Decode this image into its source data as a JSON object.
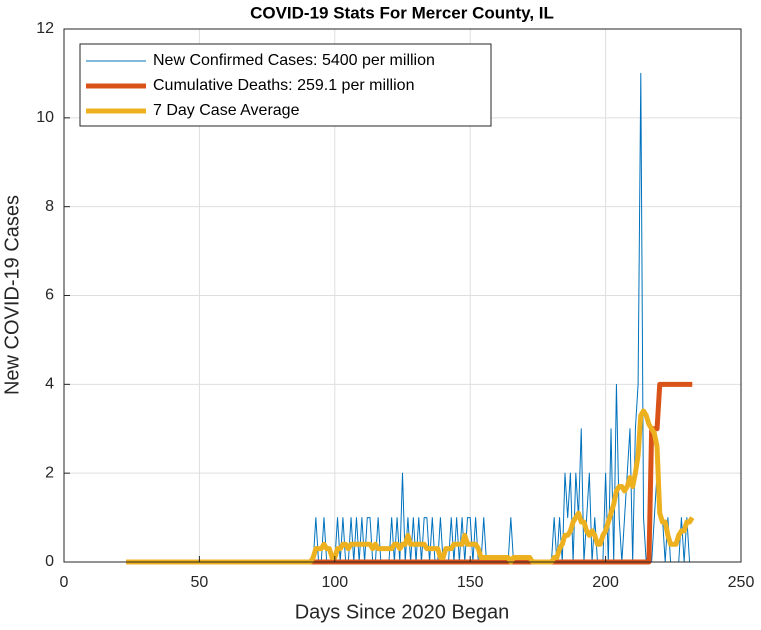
{
  "chart_data": {
    "type": "line",
    "title": "COVID-19 Stats For Mercer County, IL",
    "xlabel": "Days Since 2020 Began",
    "ylabel": "New COVID-19 Cases",
    "xlim": [
      0,
      250
    ],
    "xticks": [
      0,
      50,
      100,
      150,
      200,
      250
    ],
    "ylim": [
      0,
      12
    ],
    "yticks": [
      0,
      2,
      4,
      6,
      8,
      10,
      12
    ],
    "grid": true,
    "legend": "upper-left",
    "x": [
      23,
      24,
      25,
      26,
      27,
      28,
      29,
      30,
      31,
      32,
      33,
      34,
      35,
      36,
      37,
      38,
      39,
      40,
      41,
      42,
      43,
      44,
      45,
      46,
      47,
      48,
      49,
      50,
      51,
      52,
      53,
      54,
      55,
      56,
      57,
      58,
      59,
      60,
      61,
      62,
      63,
      64,
      65,
      66,
      67,
      68,
      69,
      70,
      71,
      72,
      73,
      74,
      75,
      76,
      77,
      78,
      79,
      80,
      81,
      82,
      83,
      84,
      85,
      86,
      87,
      88,
      89,
      90,
      91,
      92,
      93,
      94,
      95,
      96,
      97,
      98,
      99,
      100,
      101,
      102,
      103,
      104,
      105,
      106,
      107,
      108,
      109,
      110,
      111,
      112,
      113,
      114,
      115,
      116,
      117,
      118,
      119,
      120,
      121,
      122,
      123,
      124,
      125,
      126,
      127,
      128,
      129,
      130,
      131,
      132,
      133,
      134,
      135,
      136,
      137,
      138,
      139,
      140,
      141,
      142,
      143,
      144,
      145,
      146,
      147,
      148,
      149,
      150,
      151,
      152,
      153,
      154,
      155,
      156,
      157,
      158,
      159,
      160,
      161,
      162,
      163,
      164,
      165,
      166,
      167,
      168,
      169,
      170,
      171,
      172,
      173,
      174,
      175,
      176,
      177,
      178,
      179,
      180,
      181,
      182,
      183,
      184,
      185,
      186,
      187,
      188,
      189,
      190,
      191,
      192,
      193,
      194,
      195,
      196,
      197,
      198,
      199,
      200,
      201,
      202,
      203,
      204,
      205,
      206,
      207,
      208,
      209,
      210,
      211,
      212,
      213,
      214,
      215,
      216,
      217,
      218,
      219,
      220,
      221,
      222,
      223,
      224,
      225,
      226,
      227,
      228,
      229,
      230,
      231,
      232
    ],
    "series": [
      {
        "name": "New Confirmed Cases: 5400 per million",
        "color": "#0072BD",
        "width": 1,
        "values": [
          0,
          0,
          0,
          0,
          0,
          0,
          0,
          0,
          0,
          0,
          0,
          0,
          0,
          0,
          0,
          0,
          0,
          0,
          0,
          0,
          0,
          0,
          0,
          0,
          0,
          0,
          0,
          0,
          0,
          0,
          0,
          0,
          0,
          0,
          0,
          0,
          0,
          0,
          0,
          0,
          0,
          0,
          0,
          0,
          0,
          0,
          0,
          0,
          0,
          0,
          0,
          0,
          0,
          0,
          0,
          0,
          0,
          0,
          0,
          0,
          0,
          0,
          0,
          0,
          0,
          0,
          0,
          0,
          0,
          0,
          1,
          0,
          0,
          1,
          0,
          0,
          0,
          0,
          1,
          0,
          1,
          0,
          0,
          1,
          0,
          1,
          0,
          1,
          0,
          1,
          1,
          0,
          0,
          1,
          0,
          0,
          0,
          0,
          1,
          0,
          1,
          0,
          2,
          0,
          1,
          0,
          1,
          0,
          1,
          0,
          1,
          1,
          0,
          1,
          0,
          0,
          1,
          0,
          0,
          0,
          1,
          0,
          1,
          0,
          1,
          0,
          1,
          1,
          0,
          1,
          0,
          0,
          1,
          0,
          0,
          0,
          0,
          0,
          0,
          0,
          0,
          0,
          1,
          0,
          0,
          0,
          0,
          0,
          0,
          0,
          0,
          0,
          0,
          0,
          0,
          0,
          0,
          0,
          1,
          0,
          1,
          0,
          2,
          1,
          2,
          0,
          2,
          1,
          3,
          0,
          1,
          2,
          0,
          1,
          0,
          0,
          0,
          2,
          0,
          3,
          0,
          4,
          1,
          0,
          1,
          2,
          3,
          0,
          3,
          4,
          11,
          1,
          0,
          0,
          0,
          1,
          2,
          1,
          1,
          0,
          1,
          0,
          0,
          0,
          0,
          1,
          0,
          1,
          0,
          0
        ]
      },
      {
        "name": "Cumulative Deaths: 259.1 per million",
        "color": "#D95319",
        "width": 5,
        "values": [
          0,
          0,
          0,
          0,
          0,
          0,
          0,
          0,
          0,
          0,
          0,
          0,
          0,
          0,
          0,
          0,
          0,
          0,
          0,
          0,
          0,
          0,
          0,
          0,
          0,
          0,
          0,
          0,
          0,
          0,
          0,
          0,
          0,
          0,
          0,
          0,
          0,
          0,
          0,
          0,
          0,
          0,
          0,
          0,
          0,
          0,
          0,
          0,
          0,
          0,
          0,
          0,
          0,
          0,
          0,
          0,
          0,
          0,
          0,
          0,
          0,
          0,
          0,
          0,
          0,
          0,
          0,
          0,
          0,
          0,
          0,
          0,
          0,
          0,
          0,
          0,
          0,
          0,
          0,
          0,
          0,
          0,
          0,
          0,
          0,
          0,
          0,
          0,
          0,
          0,
          0,
          0,
          0,
          0,
          0,
          0,
          0,
          0,
          0,
          0,
          0,
          0,
          0,
          0,
          0,
          0,
          0,
          0,
          0,
          0,
          0,
          0,
          0,
          0,
          0,
          0,
          0,
          0,
          0,
          0,
          0,
          0,
          0,
          0,
          0,
          0,
          0,
          0,
          0,
          0,
          0,
          0,
          0,
          0,
          0,
          0,
          0,
          0,
          0,
          0,
          0,
          0,
          0,
          0,
          0,
          0,
          0,
          0,
          0,
          0,
          0,
          0,
          0,
          0,
          0,
          0,
          0,
          0,
          0,
          0,
          0,
          0,
          0,
          0,
          0,
          0,
          0,
          0,
          0,
          0,
          0,
          0,
          0,
          0,
          0,
          0,
          0,
          0,
          0,
          0,
          0,
          0,
          0,
          0,
          0,
          0,
          0,
          0,
          0,
          0,
          0,
          0,
          0,
          0,
          3,
          3,
          3,
          4,
          4,
          4,
          4,
          4,
          4,
          4,
          4,
          4,
          4,
          4,
          4,
          4
        ]
      },
      {
        "name": "7 Day Case Average",
        "color": "#EDB120",
        "width": 5,
        "values": [
          0,
          0,
          0,
          0,
          0,
          0,
          0,
          0,
          0,
          0,
          0,
          0,
          0,
          0,
          0,
          0,
          0,
          0,
          0,
          0,
          0,
          0,
          0,
          0,
          0,
          0,
          0,
          0,
          0,
          0,
          0,
          0,
          0,
          0,
          0,
          0,
          0,
          0,
          0,
          0,
          0,
          0,
          0,
          0,
          0,
          0,
          0,
          0,
          0,
          0,
          0,
          0,
          0,
          0,
          0,
          0,
          0,
          0,
          0,
          0,
          0,
          0,
          0,
          0,
          0,
          0,
          0,
          0,
          0,
          0.1,
          0.3,
          0.3,
          0.3,
          0.4,
          0.3,
          0.3,
          0.1,
          0.1,
          0.3,
          0.3,
          0.4,
          0.4,
          0.3,
          0.4,
          0.4,
          0.4,
          0.4,
          0.4,
          0.4,
          0.4,
          0.4,
          0.3,
          0.4,
          0.3,
          0.3,
          0.3,
          0.3,
          0.3,
          0.3,
          0.4,
          0.4,
          0.3,
          0.4,
          0.4,
          0.6,
          0.4,
          0.4,
          0.4,
          0.4,
          0.4,
          0.4,
          0.3,
          0.3,
          0.3,
          0.3,
          0.3,
          0.1,
          0.1,
          0.3,
          0.3,
          0.3,
          0.4,
          0.4,
          0.4,
          0.4,
          0.6,
          0.4,
          0.4,
          0.4,
          0.4,
          0.3,
          0.1,
          0.1,
          0.1,
          0.1,
          0.1,
          0.1,
          0.1,
          0.1,
          0.1,
          0.1,
          0.1,
          0,
          0.1,
          0.1,
          0.1,
          0.1,
          0.1,
          0.1,
          0.1,
          0,
          0,
          0,
          0,
          0,
          0,
          0,
          0,
          0.1,
          0.1,
          0.3,
          0.4,
          0.6,
          0.6,
          0.7,
          0.9,
          1.0,
          1.1,
          0.9,
          0.9,
          0.7,
          0.6,
          0.7,
          0.6,
          0.4,
          0.4,
          0.6,
          0.7,
          0.9,
          1.1,
          1.3,
          1.6,
          1.7,
          1.7,
          1.6,
          1.7,
          1.9,
          1.7,
          2.0,
          2.4,
          3.3,
          3.4,
          3.3,
          3.1,
          3.0,
          2.9,
          2.6,
          1.1,
          0.9,
          0.9,
          0.6,
          0.4,
          0.4,
          0.4,
          0.6,
          0.7,
          0.7,
          0.9,
          0.9,
          1.0
        ]
      }
    ]
  }
}
